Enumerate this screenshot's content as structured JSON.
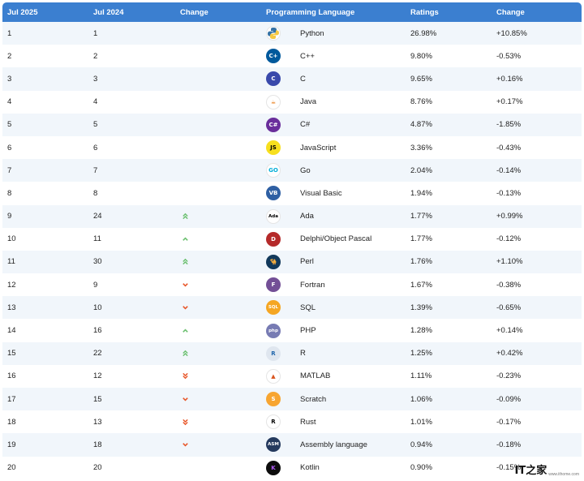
{
  "header": {
    "col_jul2025": "Jul 2025",
    "col_jul2024": "Jul 2024",
    "col_change": "Change",
    "col_language": "Programming Language",
    "col_ratings": "Ratings",
    "col_change2": "Change"
  },
  "colors": {
    "header_bg": "#3b7fd0",
    "row_alt_bg": "#f1f6fb",
    "up_arrow": "#6cc070",
    "down_arrow": "#e8572a"
  },
  "rows": [
    {
      "rank2025": "1",
      "rank2024": "1",
      "trend": "none",
      "language": "Python",
      "icon": "python-icon",
      "ratings": "26.98%",
      "change": "+10.85%"
    },
    {
      "rank2025": "2",
      "rank2024": "2",
      "trend": "none",
      "language": "C++",
      "icon": "cplusplus-icon",
      "ratings": "9.80%",
      "change": "-0.53%"
    },
    {
      "rank2025": "3",
      "rank2024": "3",
      "trend": "none",
      "language": "C",
      "icon": "c-icon",
      "ratings": "9.65%",
      "change": "+0.16%"
    },
    {
      "rank2025": "4",
      "rank2024": "4",
      "trend": "none",
      "language": "Java",
      "icon": "java-icon",
      "ratings": "8.76%",
      "change": "+0.17%"
    },
    {
      "rank2025": "5",
      "rank2024": "5",
      "trend": "none",
      "language": "C#",
      "icon": "csharp-icon",
      "ratings": "4.87%",
      "change": "-1.85%"
    },
    {
      "rank2025": "6",
      "rank2024": "6",
      "trend": "none",
      "language": "JavaScript",
      "icon": "javascript-icon",
      "ratings": "3.36%",
      "change": "-0.43%"
    },
    {
      "rank2025": "7",
      "rank2024": "7",
      "trend": "none",
      "language": "Go",
      "icon": "go-icon",
      "ratings": "2.04%",
      "change": "-0.14%"
    },
    {
      "rank2025": "8",
      "rank2024": "8",
      "trend": "none",
      "language": "Visual Basic",
      "icon": "visual-basic-icon",
      "ratings": "1.94%",
      "change": "-0.13%"
    },
    {
      "rank2025": "9",
      "rank2024": "24",
      "trend": "up2",
      "language": "Ada",
      "icon": "ada-icon",
      "ratings": "1.77%",
      "change": "+0.99%"
    },
    {
      "rank2025": "10",
      "rank2024": "11",
      "trend": "up1",
      "language": "Delphi/Object Pascal",
      "icon": "delphi-icon",
      "ratings": "1.77%",
      "change": "-0.12%"
    },
    {
      "rank2025": "11",
      "rank2024": "30",
      "trend": "up2",
      "language": "Perl",
      "icon": "perl-icon",
      "ratings": "1.76%",
      "change": "+1.10%"
    },
    {
      "rank2025": "12",
      "rank2024": "9",
      "trend": "down1",
      "language": "Fortran",
      "icon": "fortran-icon",
      "ratings": "1.67%",
      "change": "-0.38%"
    },
    {
      "rank2025": "13",
      "rank2024": "10",
      "trend": "down1",
      "language": "SQL",
      "icon": "sql-icon",
      "ratings": "1.39%",
      "change": "-0.65%"
    },
    {
      "rank2025": "14",
      "rank2024": "16",
      "trend": "up1",
      "language": "PHP",
      "icon": "php-icon",
      "ratings": "1.28%",
      "change": "+0.14%"
    },
    {
      "rank2025": "15",
      "rank2024": "22",
      "trend": "up2",
      "language": "R",
      "icon": "r-icon",
      "ratings": "1.25%",
      "change": "+0.42%"
    },
    {
      "rank2025": "16",
      "rank2024": "12",
      "trend": "down2",
      "language": "MATLAB",
      "icon": "matlab-icon",
      "ratings": "1.11%",
      "change": "-0.23%"
    },
    {
      "rank2025": "17",
      "rank2024": "15",
      "trend": "down1",
      "language": "Scratch",
      "icon": "scratch-icon",
      "ratings": "1.06%",
      "change": "-0.09%"
    },
    {
      "rank2025": "18",
      "rank2024": "13",
      "trend": "down2",
      "language": "Rust",
      "icon": "rust-icon",
      "ratings": "1.01%",
      "change": "-0.17%"
    },
    {
      "rank2025": "19",
      "rank2024": "18",
      "trend": "down1",
      "language": "Assembly language",
      "icon": "assembly-icon",
      "ratings": "0.94%",
      "change": "-0.18%"
    },
    {
      "rank2025": "20",
      "rank2024": "20",
      "trend": "none",
      "language": "Kotlin",
      "icon": "kotlin-icon",
      "ratings": "0.90%",
      "change": "-0.15%"
    }
  ],
  "watermark": {
    "main": "IT之家",
    "sub": "www.ithome.com"
  }
}
